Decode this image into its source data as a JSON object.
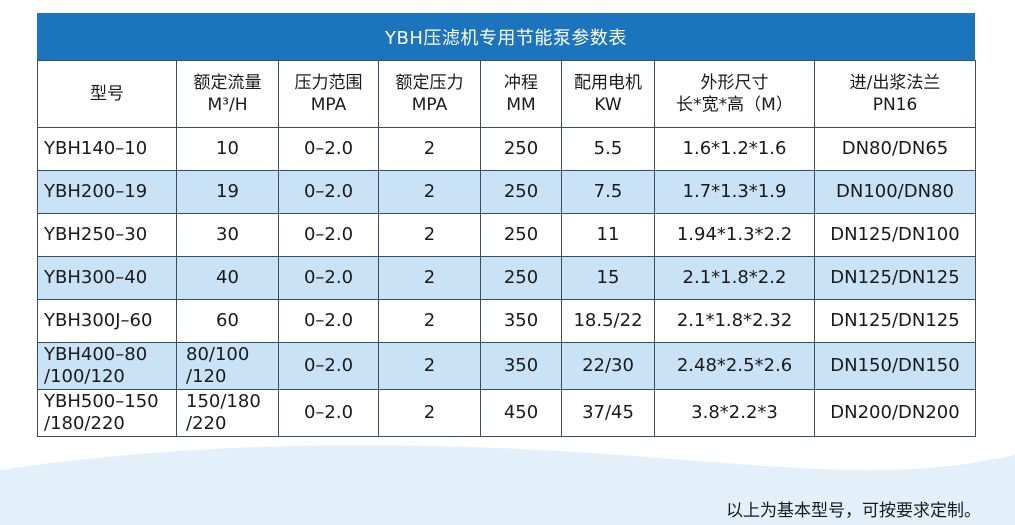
{
  "title": "YBH压滤机专用节能泵参数表",
  "headers": [
    {
      "l1": "型号",
      "l2": ""
    },
    {
      "l1": "额定流量",
      "l2": "M³/H"
    },
    {
      "l1": "压力范围",
      "l2": "MPA"
    },
    {
      "l1": "额定压力",
      "l2": "MPA"
    },
    {
      "l1": "冲程",
      "l2": "MM"
    },
    {
      "l1": "配用电机",
      "l2": "KW"
    },
    {
      "l1": "外形尺寸",
      "l2": "长*宽*高（M）"
    },
    {
      "l1": "进/出浆法兰",
      "l2": "PN16"
    }
  ],
  "rows": [
    [
      "YBH140–10",
      "10",
      "0–2.0",
      "2",
      "250",
      "5.5",
      "1.6*1.2*1.6",
      "DN80/DN65"
    ],
    [
      "YBH200–19",
      "19",
      "0–2.0",
      "2",
      "250",
      "7.5",
      "1.7*1.3*1.9",
      "DN100/DN80"
    ],
    [
      "YBH250–30",
      "30",
      "0–2.0",
      "2",
      "250",
      "11",
      "1.94*1.3*2.2",
      "DN125/DN100"
    ],
    [
      "YBH300–40",
      "40",
      "0–2.0",
      "2",
      "250",
      "15",
      "2.1*1.8*2.2",
      "DN125/DN125"
    ],
    [
      "YBH300J–60",
      "60",
      "0–2.0",
      "2",
      "350",
      "18.5/22",
      "2.1*1.8*2.32",
      "DN125/DN125"
    ],
    [
      "YBH400–80 /100/120",
      "80/100 /120",
      "0–2.0",
      "2",
      "350",
      "22/30",
      "2.48*2.5*2.6",
      "DN150/DN150"
    ],
    [
      "YBH500–150 /180/220",
      "150/180 /220",
      "0–2.0",
      "2",
      "450",
      "37/45",
      "3.8*2.2*3",
      "DN200/DN200"
    ]
  ],
  "note": "以上为基本型号，可按要求定制。",
  "colors": {
    "title_bg": "#1c74bc",
    "alt_row": "#c9e2f5",
    "wave": "#e3f0fa"
  }
}
